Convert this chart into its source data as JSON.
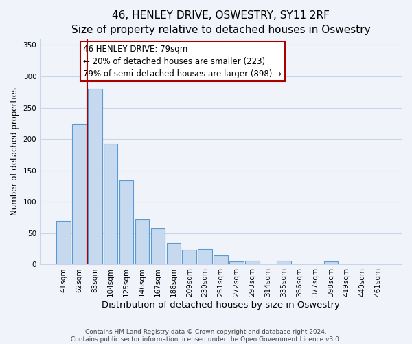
{
  "title": "46, HENLEY DRIVE, OSWESTRY, SY11 2RF",
  "subtitle": "Size of property relative to detached houses in Oswestry",
  "xlabel": "Distribution of detached houses by size in Oswestry",
  "ylabel": "Number of detached properties",
  "bar_labels": [
    "41sqm",
    "62sqm",
    "83sqm",
    "104sqm",
    "125sqm",
    "146sqm",
    "167sqm",
    "188sqm",
    "209sqm",
    "230sqm",
    "251sqm",
    "272sqm",
    "293sqm",
    "314sqm",
    "335sqm",
    "356sqm",
    "377sqm",
    "398sqm",
    "419sqm",
    "440sqm",
    "461sqm"
  ],
  "bar_values": [
    70,
    224,
    280,
    193,
    134,
    72,
    58,
    34,
    24,
    25,
    15,
    5,
    6,
    1,
    6,
    1,
    1,
    5,
    1,
    1,
    1
  ],
  "bar_color": "#c6d9ee",
  "bar_edge_color": "#5b9bd5",
  "vline_color": "#aa0000",
  "annotation_title": "46 HENLEY DRIVE: 79sqm",
  "annotation_line1": "← 20% of detached houses are smaller (223)",
  "annotation_line2": "79% of semi-detached houses are larger (898) →",
  "annotation_box_color": "#ffffff",
  "annotation_box_edge": "#aa0000",
  "ylim": [
    0,
    360
  ],
  "yticks": [
    0,
    50,
    100,
    150,
    200,
    250,
    300,
    350
  ],
  "footnote1": "Contains HM Land Registry data © Crown copyright and database right 2024.",
  "footnote2": "Contains public sector information licensed under the Open Government Licence v3.0.",
  "background_color": "#f0f4fa",
  "grid_color": "#c8d4e8",
  "title_fontsize": 11,
  "xlabel_fontsize": 9.5,
  "ylabel_fontsize": 8.5,
  "tick_fontsize": 7.5,
  "annotation_fontsize": 8.5,
  "footnote_fontsize": 6.5
}
